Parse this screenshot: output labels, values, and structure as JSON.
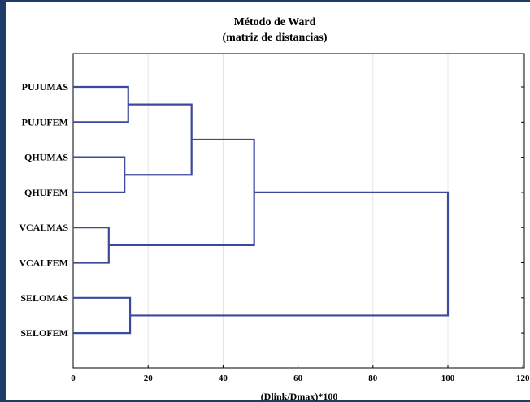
{
  "chart_data": {
    "type": "dendrogram",
    "title": "Método de Ward",
    "subtitle": "(matriz de distancias)",
    "xlabel": "(Dlink/Dmax)*100",
    "ylabel": "",
    "xlim": [
      0,
      120
    ],
    "x_ticks": [
      "0",
      "20",
      "40",
      "60",
      "80",
      "100",
      "120"
    ],
    "grid": "vertical",
    "line_color": "#3c4a9c",
    "leaves": [
      "PUJUMAS",
      "PUJUFEM",
      "QHUMAS",
      "QHUFEM",
      "VCALMAS",
      "VCALFEM",
      "SELOMAS",
      "SELOFEM"
    ],
    "merges": [
      {
        "left": "PUJUMAS",
        "right": "PUJUFEM",
        "height": 14.7
      },
      {
        "left": "QHUMAS",
        "right": "QHUFEM",
        "height": 13.7
      },
      {
        "left": "VCALMAS",
        "right": "VCALFEM",
        "height": 9.5
      },
      {
        "left": "SELOMAS",
        "right": "SELOFEM",
        "height": 15.2
      },
      {
        "left": "PUJUMAS+PUJUFEM",
        "right": "QHUMAS+QHUFEM",
        "height": 31.6
      },
      {
        "left": "PUJUMAS+PUJUFEM+QHUMAS+QHUFEM",
        "right": "VCALMAS+VCALFEM",
        "height": 48.3
      },
      {
        "left": "PUJUMAS+PUJUFEM+QHUMAS+QHUFEM+VCALMAS+VCALFEM",
        "right": "SELOMAS+SELOFEM",
        "height": 100
      }
    ]
  }
}
